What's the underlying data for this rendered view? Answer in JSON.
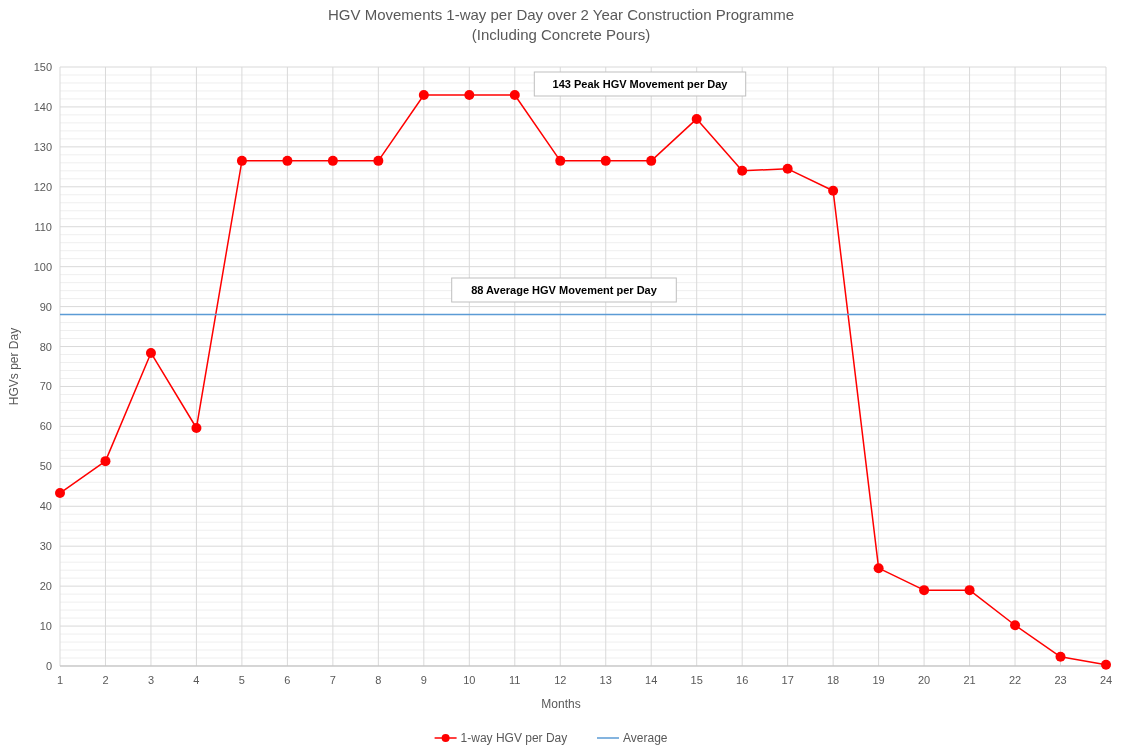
{
  "chart_data": {
    "type": "line",
    "title": "HGV Movements 1-way per Day over 2 Year Construction Programme",
    "subtitle": "(Including Concrete Pours)",
    "xlabel": "Months",
    "ylabel": "HGVs per Day",
    "x": [
      1,
      2,
      3,
      4,
      5,
      6,
      7,
      8,
      9,
      10,
      11,
      12,
      13,
      14,
      15,
      16,
      17,
      18,
      19,
      20,
      21,
      22,
      23,
      24
    ],
    "xlim": [
      1,
      24
    ],
    "xticks": [
      1,
      2,
      3,
      4,
      5,
      6,
      7,
      8,
      9,
      10,
      11,
      12,
      13,
      14,
      15,
      16,
      17,
      18,
      19,
      20,
      21,
      22,
      23,
      24
    ],
    "ylim": [
      0,
      150
    ],
    "yticks": [
      0,
      10,
      20,
      30,
      40,
      50,
      60,
      70,
      80,
      90,
      100,
      110,
      120,
      130,
      140,
      150
    ],
    "grid": true,
    "legend": "bottom",
    "series": [
      {
        "name": "1-way HGV per Day",
        "color": "#ff0000",
        "marker": "circle",
        "values": [
          43.3,
          51.3,
          78.4,
          59.6,
          126.5,
          126.5,
          126.5,
          126.5,
          143,
          143,
          143,
          126.5,
          126.5,
          126.5,
          137,
          124,
          124.5,
          119,
          24.5,
          19,
          19,
          10.2,
          2.3,
          0.3
        ]
      },
      {
        "name": "Average",
        "color": "#5b9bd5",
        "marker": "none",
        "values": [
          88,
          88,
          88,
          88,
          88,
          88,
          88,
          88,
          88,
          88,
          88,
          88,
          88,
          88,
          88,
          88,
          88,
          88,
          88,
          88,
          88,
          88,
          88,
          88
        ]
      }
    ],
    "annotations": [
      "143 Peak HGV Movement per Day",
      "88 Average HGV Movement per Day"
    ]
  }
}
